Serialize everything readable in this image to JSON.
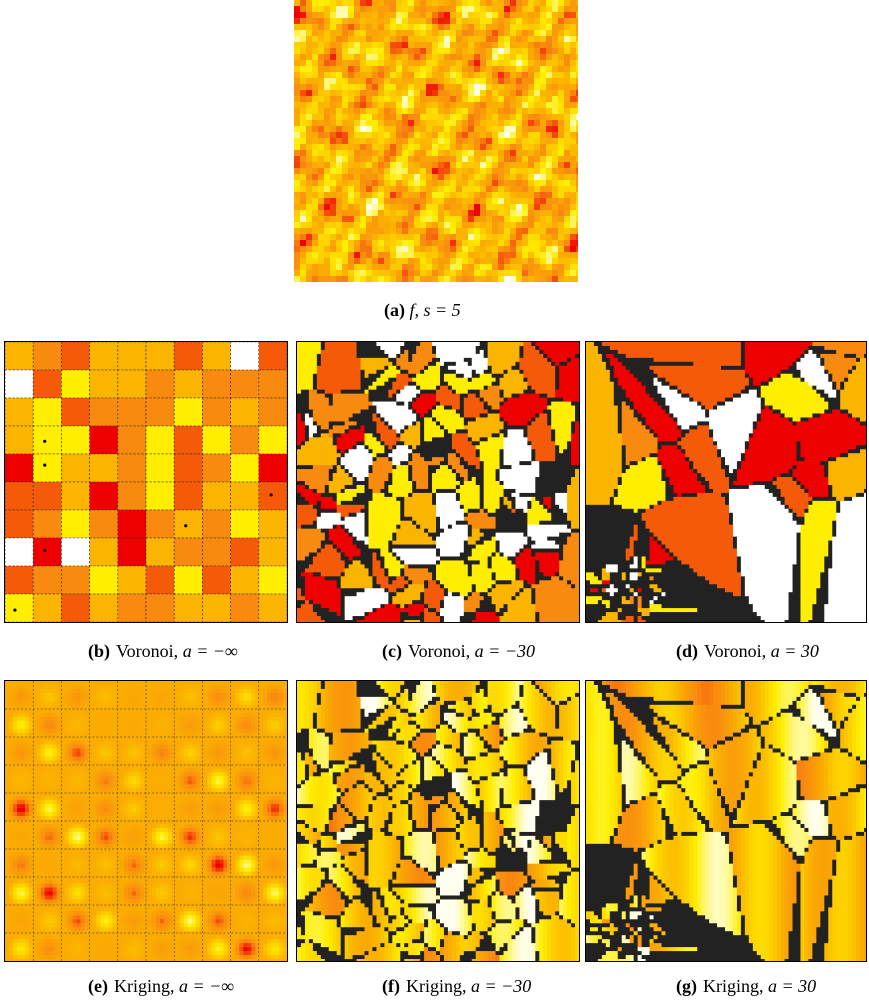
{
  "colors": {
    "white": "#ffffff",
    "yellow": "#ffee00",
    "light_orange": "#fbb400",
    "orange": "#f98a10",
    "dark_orange": "#f45a08",
    "red": "#ee0000",
    "seed_dot": "#000000",
    "cell_edge": "#222222"
  },
  "panels": [
    {
      "id": "a",
      "label": "(a)",
      "math": "f, s = 5",
      "text": ""
    },
    {
      "id": "b",
      "label": "(b)",
      "text": "Voronoi,",
      "math": "a = −∞"
    },
    {
      "id": "c",
      "label": "(c)",
      "text": "Voronoi,",
      "math": "a = −30"
    },
    {
      "id": "d",
      "label": "(d)",
      "text": "Voronoi,",
      "math": "a = 30"
    },
    {
      "id": "e",
      "label": "(e)",
      "text": "Kriging,",
      "math": "a = −∞"
    },
    {
      "id": "f",
      "label": "(f)",
      "text": "Kriging,",
      "math": "a = −30"
    },
    {
      "id": "g",
      "label": "(g)",
      "text": "Kriging,",
      "math": "a = 30"
    }
  ]
}
